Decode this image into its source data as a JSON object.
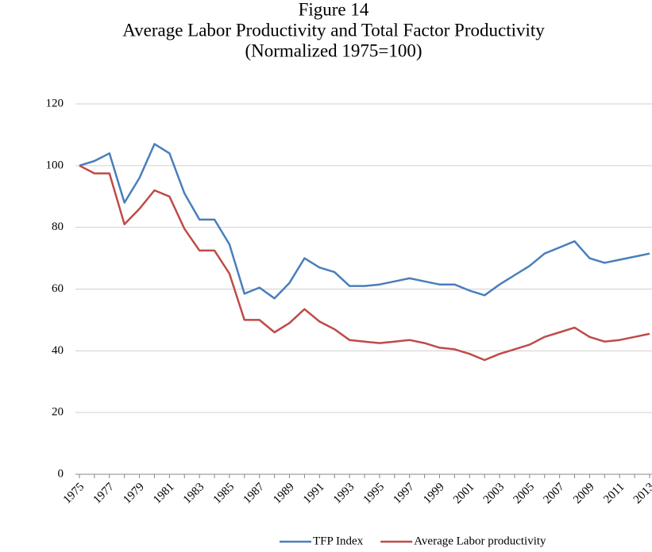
{
  "chart_data": {
    "type": "line",
    "title": "Figure 14",
    "subtitle": "Average Labor Productivity and Total Factor Productivity",
    "note": "(Normalized 1975=100)",
    "categories": [
      "1975",
      null,
      "1977",
      null,
      "1979",
      null,
      "1981",
      null,
      "1983",
      null,
      "1985",
      null,
      "1987",
      null,
      "1989",
      null,
      "1991",
      null,
      "1993",
      null,
      "1995",
      null,
      "1997",
      null,
      "1999",
      null,
      "2001",
      null,
      "2003",
      null,
      "2005",
      null,
      "2007",
      null,
      "2009",
      null,
      "2011",
      null,
      "2013"
    ],
    "series": [
      {
        "name": "TFP Index",
        "color": "#4a7ebb",
        "values": [
          100,
          101.5,
          104,
          88,
          96,
          107,
          104,
          91,
          82.5,
          82.5,
          74.5,
          58.5,
          60.5,
          57,
          62,
          70,
          67,
          65.5,
          61,
          61,
          61.5,
          62.5,
          63.5,
          62.5,
          61.5,
          61.5,
          59.5,
          58,
          61.5,
          64.5,
          67.5,
          71.5,
          73.5,
          75.5,
          70,
          68.5,
          69.5,
          70.5,
          71.5
        ]
      },
      {
        "name": "Average Labor productivity",
        "color": "#be4b48",
        "values": [
          100,
          97.5,
          97.5,
          81,
          86,
          92,
          90,
          79.5,
          72.5,
          72.5,
          65,
          50,
          50,
          46,
          49,
          53.5,
          49.5,
          47,
          43.5,
          43,
          42.5,
          43,
          43.5,
          42.5,
          41,
          40.5,
          39,
          37,
          39,
          40.5,
          42,
          44.5,
          46,
          47.5,
          44.5,
          43,
          43.5,
          44.5,
          45.5
        ]
      }
    ],
    "ylim": [
      0,
      120
    ],
    "yticks": [
      0,
      20,
      40,
      60,
      80,
      100,
      120
    ],
    "grid": true,
    "legend": "bottom"
  }
}
